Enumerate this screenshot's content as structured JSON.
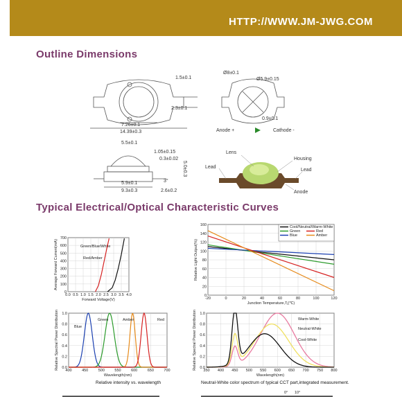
{
  "header": {
    "url": "HTTP://WWW.JM-JWG.COM",
    "band_color": "#b48a1a"
  },
  "sections": {
    "outline": "Outline Dimensions",
    "curves": "Typical Electrical/Optical Characteristic Curves"
  },
  "dimensions": {
    "top_view": {
      "d1": "1.5±0.1",
      "d2": "2.3±0.1",
      "d3": "7.26±0.1",
      "d4": "14.39±0.3"
    },
    "right_view": {
      "d1": "Ø8±0.1",
      "d2": "Ø5.9±0.15",
      "d3": "0.9±0.1",
      "anode": "Anode +",
      "cathode": "Cathode -"
    },
    "side_view": {
      "d1": "5.5±0.1",
      "d2": "1.05±0.15",
      "d3": "0.3±0.02",
      "d4": "5.0±0.3",
      "d5": "5.9±0.1",
      "d6": "3°",
      "d7": "9.3±0.3",
      "d8": "2.6±0.2"
    },
    "photo_labels": {
      "lens": "Lens",
      "housing": "Housing",
      "lead_left": "Lead",
      "lead_right": "Lead",
      "anode": "Anode"
    }
  },
  "chart_data": [
    {
      "type": "line",
      "title": "",
      "xlabel": "Forward Voltage(V)",
      "ylabel": "Average Forward Current(mA)",
      "xlim": [
        0,
        4.0
      ],
      "ylim": [
        0,
        700
      ],
      "xticks": [
        "0.0",
        "0.5",
        "1.0",
        "1.5",
        "2.0",
        "2.5",
        "3.0",
        "3.5",
        "4.0"
      ],
      "yticks": [
        "0",
        "100",
        "200",
        "300",
        "400",
        "500",
        "600",
        "700"
      ],
      "series": [
        {
          "name": "Green/Blue/White",
          "color": "#111111",
          "x": [
            2.6,
            2.9,
            3.1,
            3.3,
            3.5,
            3.7
          ],
          "y": [
            0,
            50,
            150,
            300,
            480,
            690
          ]
        },
        {
          "name": "Red/Amber",
          "color": "#d62020",
          "x": [
            1.8,
            2.0,
            2.2,
            2.4,
            2.55,
            2.7
          ],
          "y": [
            0,
            80,
            230,
            420,
            560,
            690
          ]
        }
      ]
    },
    {
      "type": "line",
      "title": "",
      "xlabel": "Junction Temperature,Tⱼ(℃)",
      "ylabel": "Relative Light Output(%)",
      "xlim": [
        -20,
        120
      ],
      "ylim": [
        0,
        160
      ],
      "xticks": [
        "-20",
        "0",
        "20",
        "40",
        "60",
        "80",
        "100",
        "120"
      ],
      "yticks": [
        "0",
        "20",
        "40",
        "60",
        "80",
        "100",
        "120",
        "140",
        "160"
      ],
      "series": [
        {
          "name": "Cool/Neutral/Warm-White",
          "color": "#111111",
          "x": [
            -20,
            120
          ],
          "y": [
            110,
            80
          ]
        },
        {
          "name": "Green",
          "color": "#2a9a2a",
          "x": [
            -20,
            120
          ],
          "y": [
            114,
            70
          ]
        },
        {
          "name": "Blue",
          "color": "#1a3fb0",
          "x": [
            -20,
            120
          ],
          "y": [
            106,
            92
          ]
        },
        {
          "name": "Red",
          "color": "#d62020",
          "x": [
            -20,
            120
          ],
          "y": [
            134,
            40
          ]
        },
        {
          "name": "Amber",
          "color": "#e68a1a",
          "x": [
            -20,
            120
          ],
          "y": [
            146,
            10
          ]
        }
      ]
    },
    {
      "type": "line",
      "title": "",
      "xlabel": "Wavelength(nm)",
      "ylabel": "Relative Spectral Power Distribution",
      "caption": "Relative intensity vs. wavelength",
      "xlim": [
        400,
        700
      ],
      "ylim": [
        0,
        1.0
      ],
      "xticks": [
        "400",
        "450",
        "500",
        "550",
        "600",
        "650",
        "700"
      ],
      "yticks": [
        "0.0",
        "0.2",
        "0.4",
        "0.6",
        "0.8",
        "1.0"
      ],
      "series": [
        {
          "name": "Blue",
          "color": "#1a3fb0",
          "peak": 460,
          "width": 12
        },
        {
          "name": "Green",
          "color": "#2a9a2a",
          "peak": 525,
          "width": 14
        },
        {
          "name": "Amber",
          "color": "#e68a1a",
          "peak": 595,
          "width": 8
        },
        {
          "name": "Red",
          "color": "#d62020",
          "peak": 630,
          "width": 9
        }
      ]
    },
    {
      "type": "line",
      "title": "",
      "xlabel": "Wavelength(nm)",
      "ylabel": "Relative Spectral Power Distribution",
      "caption": "Neutral-White color spectrum of typical CCT part,integrated measurement.",
      "xlim": [
        350,
        800
      ],
      "ylim": [
        0,
        1.0
      ],
      "xticks": [
        "350",
        "400",
        "450",
        "500",
        "550",
        "600",
        "650",
        "700",
        "750",
        "800"
      ],
      "yticks": [
        "0.0",
        "0.2",
        "0.4",
        "0.6",
        "0.8",
        "1.0"
      ],
      "series": [
        {
          "name": "Warm-White",
          "color": "#e87aa0",
          "blue_peak": 0.35,
          "phosphor_peak": 1.0,
          "phosphor_center": 600,
          "phosphor_width": 60
        },
        {
          "name": "Neutral-White",
          "color": "#f0e060",
          "blue_peak": 0.55,
          "phosphor_peak": 0.8,
          "phosphor_center": 580,
          "phosphor_width": 60
        },
        {
          "name": "Cool-White",
          "color": "#111111",
          "blue_peak": 1.0,
          "phosphor_peak": 0.62,
          "phosphor_center": 555,
          "phosphor_width": 55
        }
      ]
    }
  ],
  "footer_partial": {
    "a": "0°",
    "b": "10°"
  }
}
